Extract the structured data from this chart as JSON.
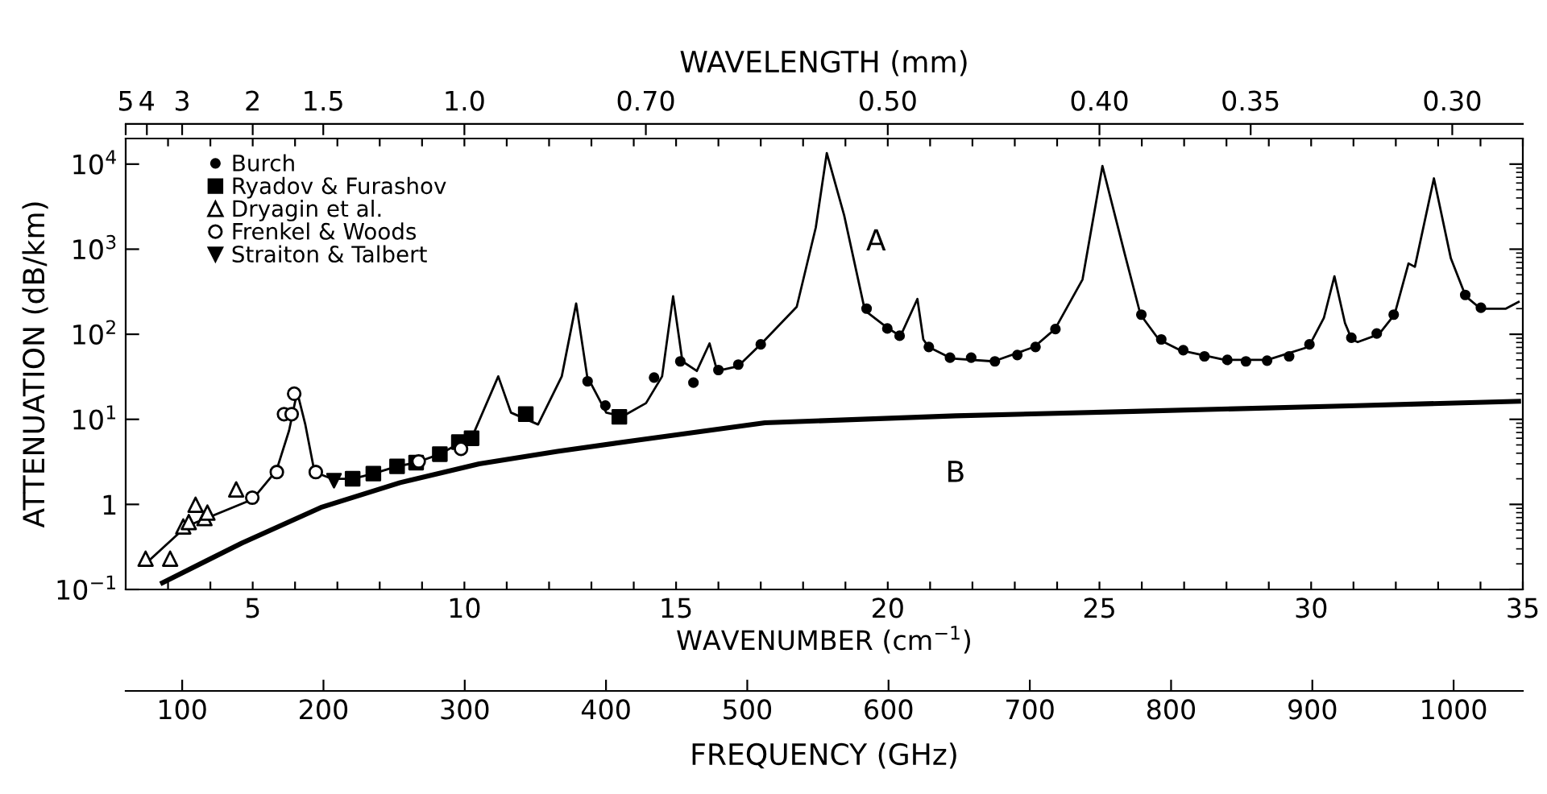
{
  "chart_data": [
    {
      "type": "other",
      "xlabel": "WAVELENGTH (mm)",
      "annotations": [
        "5",
        "4",
        "3",
        "2",
        "1.5",
        "1.0",
        "0.70",
        "0.50",
        "0.40",
        "0.35",
        "0.30"
      ]
    },
    {
      "type": "line",
      "xlabel": "WAVENUMBER (cm$^{−1}$)",
      "ylabel": "ATTENUATION (dB/km)",
      "x2label": "FREQUENCY (GHz)",
      "log": "y",
      "grid": false,
      "legend": "top left",
      "xlim": [
        2,
        35
      ],
      "ylim": [
        0.1,
        20000
      ],
      "xticks": [
        {
          "value": 3,
          "label": null
        },
        {
          "value": 4,
          "label": null
        },
        5,
        {
          "value": 6,
          "label": null
        },
        {
          "value": 7,
          "label": null
        },
        {
          "value": 8,
          "label": null
        },
        {
          "value": 9,
          "label": null
        },
        10,
        {
          "value": 11,
          "label": null
        },
        {
          "value": 12,
          "label": null
        },
        {
          "value": 13,
          "label": null
        },
        {
          "value": 14,
          "label": null
        },
        15,
        {
          "value": 16,
          "label": null
        },
        {
          "value": 17,
          "label": null
        },
        {
          "value": 18,
          "label": null
        },
        {
          "value": 19,
          "label": null
        },
        20,
        {
          "value": 21,
          "label": null
        },
        {
          "value": 22,
          "label": null
        },
        {
          "value": 23,
          "label": null
        },
        {
          "value": 24,
          "label": null
        },
        25,
        {
          "value": 26,
          "label": null
        },
        {
          "value": 27,
          "label": null
        },
        {
          "value": 28,
          "label": null
        },
        {
          "value": 29,
          "label": null
        },
        30,
        {
          "value": 31,
          "label": null
        },
        {
          "value": 32,
          "label": null
        },
        {
          "value": 33,
          "label": null
        },
        {
          "value": 34,
          "label": null
        },
        35
      ],
      "yticks": [
        {
          "value": 0.1,
          "label": "10$^{−1}$"
        },
        1,
        {
          "value": 10,
          "label": "10$^{1}$"
        },
        {
          "value": 100,
          "label": "10$^{2}$"
        },
        {
          "value": 1000,
          "label": "10$^{3}$"
        },
        {
          "value": 10000,
          "label": "10$^{4}$"
        }
      ],
      "x2lim": [
        60,
        1049
      ],
      "x2ticks": [
        100,
        200,
        300,
        400,
        500,
        600,
        700,
        800,
        900,
        1000
      ],
      "annotations": [
        "A",
        "B"
      ],
      "series": [
        {
          "color": "#000000",
          "marker": "none",
          "x": [
            2.6,
            3.43,
            5.0,
            5.56,
            5.86,
            6.05,
            6.24,
            6.46,
            6.87,
            7.36,
            7.85,
            8.41,
            8.86,
            9.42,
            9.87,
            10.17,
            10.8,
            11.1,
            11.74,
            12.3,
            12.64,
            12.9,
            13.35,
            13.73,
            14.29,
            14.67,
            14.93,
            15.15,
            15.49,
            15.79,
            15.97,
            16.46,
            17.02,
            17.85,
            18.3,
            18.56,
            18.97,
            19.46,
            19.98,
            20.3,
            20.7,
            20.84,
            20.96,
            21.5,
            22.5,
            23.46,
            23.95,
            24.6,
            25.07,
            25.6,
            25.97,
            26.4,
            26.9,
            27.96,
            28.97,
            29.94,
            30.3,
            30.55,
            30.8,
            30.96,
            31.1,
            31.6,
            31.97,
            32.3,
            32.45,
            32.9,
            33.3,
            33.65,
            34.0,
            34.6,
            34.9
          ],
          "values": [
            0.23,
            0.55,
            1.15,
            2.5,
            7.4,
            21,
            8.8,
            2.4,
            2.0,
            2.0,
            2.3,
            2.8,
            3.1,
            3.9,
            5.2,
            6.0,
            32,
            12,
            8.7,
            32,
            230,
            32,
            12,
            10.8,
            15.5,
            32,
            280,
            48,
            37,
            78,
            37,
            42,
            78,
            210,
            1800,
            13500,
            2500,
            190,
            120,
            95,
            260,
            87,
            71,
            52,
            48,
            71,
            115,
            440,
            9500,
            870,
            170,
            87,
            65,
            50,
            50,
            71,
            155,
            480,
            135,
            87,
            81,
            100,
            170,
            680,
            620,
            6800,
            780,
            280,
            200,
            200,
            240
          ]
        },
        {
          "color": "#000000",
          "marker": "none",
          "x": [
            2.87,
            4.74,
            6.61,
            8.48,
            10.35,
            12.2,
            14.1,
            17.1,
            21.6,
            25.8,
            30.9,
            34.9
          ],
          "values": [
            0.12,
            0.35,
            0.92,
            1.8,
            3.0,
            4.2,
            5.7,
            9.1,
            11,
            12.4,
            14.4,
            16.3
          ]
        },
        {
          "type": "scatter",
          "name": "Burch",
          "color": "#000000",
          "marker": "circle",
          "x": [
            12.91,
            13.33,
            14.48,
            15.1,
            15.41,
            16.0,
            16.47,
            17.0,
            19.5,
            19.99,
            20.28,
            20.97,
            21.47,
            21.97,
            22.53,
            23.06,
            23.49,
            23.96,
            25.99,
            26.46,
            26.98,
            27.48,
            28.02,
            28.46,
            28.96,
            29.48,
            29.96,
            30.95,
            31.55,
            31.95,
            33.64,
            34.01
          ],
          "values": [
            28,
            14.5,
            31,
            48,
            27,
            38,
            44,
            76,
            200,
            117,
            96,
            71,
            53,
            53,
            48,
            57,
            71,
            115,
            170,
            87,
            65,
            55,
            50,
            48,
            49,
            55,
            76,
            91,
            102,
            170,
            290,
            205
          ]
        },
        {
          "type": "scatter",
          "name": "Ryadov & Furashov",
          "color": "#000000",
          "marker": "square",
          "x": [
            7.36,
            7.85,
            8.41,
            8.86,
            9.42,
            9.87,
            10.17,
            11.45,
            13.66
          ],
          "values": [
            2.0,
            2.3,
            2.8,
            3.1,
            3.9,
            5.4,
            6.0,
            11.5,
            10.7
          ]
        },
        {
          "type": "scatter",
          "name": "Dryagin et al.",
          "color": "#ffffff",
          "marker": "triangle",
          "x": [
            2.47,
            3.05,
            3.36,
            3.49,
            3.65,
            3.86,
            3.93,
            4.61
          ],
          "values": [
            0.23,
            0.23,
            0.55,
            0.62,
            0.99,
            0.69,
            0.8,
            1.5
          ]
        },
        {
          "type": "scatter",
          "name": "Frenkel & Woods",
          "color": "#ffffff",
          "marker": "circle",
          "x": [
            4.99,
            5.57,
            5.74,
            5.92,
            5.98,
            6.49,
            8.92,
            9.92
          ],
          "values": [
            1.2,
            2.4,
            11.5,
            11.5,
            20,
            2.4,
            3.2,
            4.5
          ]
        },
        {
          "type": "scatter",
          "name": "Straiton & Talbert",
          "color": "#000000",
          "marker": "triangle_down",
          "x": [
            6.92
          ],
          "values": [
            1.9
          ]
        }
      ]
    }
  ]
}
